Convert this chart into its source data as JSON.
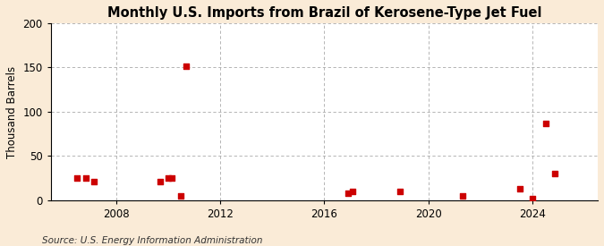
{
  "title": "Monthly U.S. Imports from Brazil of Kerosene-Type Jet Fuel",
  "ylabel": "Thousand Barrels",
  "source": "Source: U.S. Energy Information Administration",
  "background_color": "#faebd7",
  "plot_background": "#ffffff",
  "marker_color": "#cc0000",
  "marker_size": 18,
  "marker_shape": "s",
  "ylim": [
    0,
    200
  ],
  "yticks": [
    0,
    50,
    100,
    150,
    200
  ],
  "xlim": [
    2005.5,
    2026.5
  ],
  "xticks": [
    2008,
    2012,
    2016,
    2020,
    2024
  ],
  "grid_color": "#aaaaaa",
  "vline_color": "#aaaaaa",
  "data_points": [
    [
      2006.5,
      25
    ],
    [
      2006.85,
      25
    ],
    [
      2007.15,
      21
    ],
    [
      2009.7,
      21
    ],
    [
      2010.0,
      25
    ],
    [
      2010.15,
      25
    ],
    [
      2010.5,
      5
    ],
    [
      2010.7,
      151
    ],
    [
      2016.9,
      8
    ],
    [
      2017.1,
      10
    ],
    [
      2018.9,
      10
    ],
    [
      2021.3,
      5
    ],
    [
      2023.5,
      13
    ],
    [
      2024.0,
      2
    ],
    [
      2024.5,
      87
    ],
    [
      2024.85,
      30
    ]
  ]
}
